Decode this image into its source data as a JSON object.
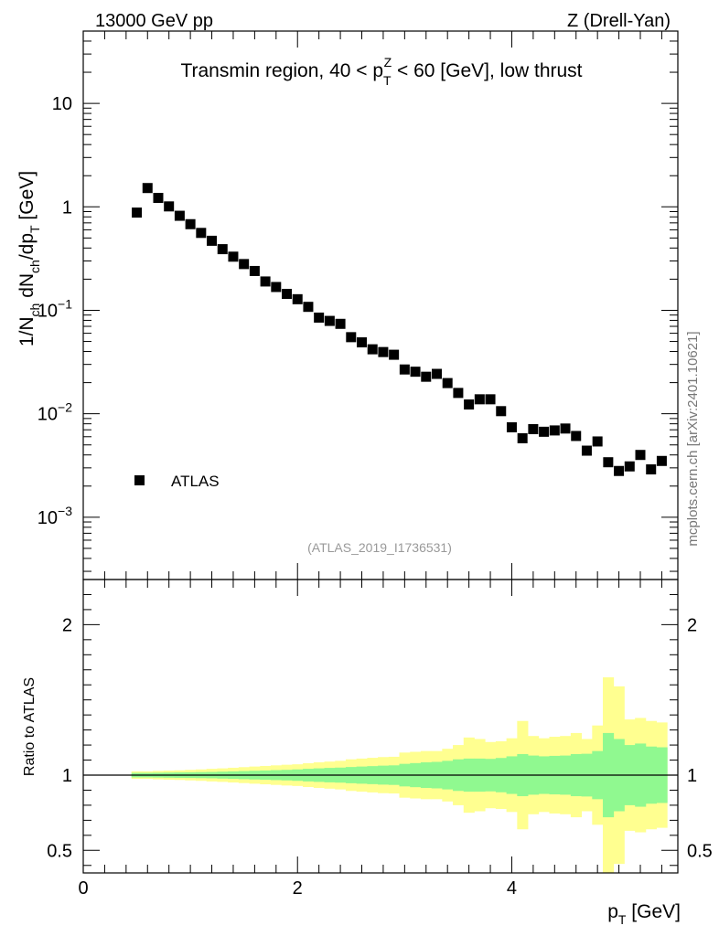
{
  "header": {
    "left_label": "13000 GeV pp",
    "right_label": "Z (Drell-Yan)"
  },
  "watermark": "mcplots.cern.ch [arXiv:2401.10621]",
  "colors": {
    "marker": "#000000",
    "band_inner": "#90f990",
    "band_outer": "#ffff90",
    "reference_line": "#000000"
  },
  "chart_data": [
    {
      "type": "scatter",
      "panel": "main",
      "title": "Transmin region, 40 < p_T^Z < 60 [GeV], low thrust",
      "title_parts": {
        "pre": "Transmin region, 40 < p",
        "sub": "T",
        "sup": "Z",
        "post": " < 60 [GeV], low thrust"
      },
      "analysis_tag": "(ATLAS_2019_I1736531)",
      "ylabel": "1/N_ch dN_ch/dp_T [GeV]",
      "ylabel_parts": [
        "1/N",
        "ch",
        " dN",
        "ch",
        "/dp",
        "T",
        " [GeV]"
      ],
      "yscale": "log",
      "ylim": [
        0.00025,
        50
      ],
      "xlim": [
        0,
        5.55
      ],
      "y_ticks": [
        {
          "value": 10,
          "base": "10",
          "exp": ""
        },
        {
          "value": 1,
          "base": "1",
          "exp": ""
        },
        {
          "value": 0.1,
          "base": "10",
          "exp": "−1"
        },
        {
          "value": 0.01,
          "base": "10",
          "exp": "−2"
        },
        {
          "value": 0.001,
          "base": "10",
          "exp": "−3"
        }
      ],
      "legend": {
        "entries": [
          "ATLAS"
        ],
        "position": "lower-left"
      },
      "series": [
        {
          "name": "ATLAS",
          "x": [
            0.5,
            0.6,
            0.7,
            0.8,
            0.9,
            1.0,
            1.1,
            1.2,
            1.3,
            1.4,
            1.5,
            1.6,
            1.7,
            1.8,
            1.9,
            2.0,
            2.1,
            2.2,
            2.3,
            2.4,
            2.5,
            2.6,
            2.7,
            2.8,
            2.9,
            3.0,
            3.1,
            3.2,
            3.3,
            3.4,
            3.5,
            3.6,
            3.7,
            3.8,
            3.9,
            4.0,
            4.1,
            4.2,
            4.3,
            4.4,
            4.5,
            4.6,
            4.7,
            4.8,
            4.9,
            5.0,
            5.1,
            5.2,
            5.3,
            5.4
          ],
          "y": [
            0.88,
            1.52,
            1.22,
            1.01,
            0.82,
            0.68,
            0.56,
            0.47,
            0.39,
            0.33,
            0.28,
            0.24,
            0.19,
            0.168,
            0.144,
            0.128,
            0.108,
            0.085,
            0.079,
            0.074,
            0.055,
            0.049,
            0.042,
            0.0395,
            0.0372,
            0.0268,
            0.0255,
            0.0228,
            0.0243,
            0.0198,
            0.0159,
            0.0123,
            0.0138,
            0.0138,
            0.0106,
            0.0074,
            0.0058,
            0.0071,
            0.0067,
            0.0069,
            0.0072,
            0.0061,
            0.0044,
            0.0054,
            0.0034,
            0.0028,
            0.0031,
            0.004,
            0.0029,
            0.0035
          ]
        }
      ]
    },
    {
      "type": "area",
      "panel": "ratio",
      "ylabel": "Ratio to ATLAS",
      "xlabel": "p_T [GeV]",
      "xlabel_parts": [
        "p",
        "T",
        " [GeV]"
      ],
      "xlim": [
        0,
        5.55
      ],
      "ylim": [
        0.35,
        2.3
      ],
      "x_ticks": [
        0,
        2,
        4
      ],
      "y_ticks": [
        0.5,
        1,
        2
      ],
      "reference": 1,
      "bin_edges": [
        0.45,
        0.55,
        0.65,
        0.75,
        0.85,
        0.95,
        1.05,
        1.15,
        1.25,
        1.35,
        1.45,
        1.55,
        1.65,
        1.75,
        1.85,
        1.95,
        2.05,
        2.15,
        2.25,
        2.35,
        2.45,
        2.55,
        2.65,
        2.75,
        2.85,
        2.95,
        3.05,
        3.15,
        3.25,
        3.35,
        3.45,
        3.55,
        3.65,
        3.75,
        3.85,
        3.95,
        4.05,
        4.15,
        4.25,
        4.35,
        4.45,
        4.55,
        4.65,
        4.75,
        4.85,
        4.95,
        5.05,
        5.15,
        5.25,
        5.35,
        5.45
      ],
      "series": [
        {
          "name": "inner band",
          "low": [
            0.985,
            0.985,
            0.984,
            0.983,
            0.982,
            0.981,
            0.98,
            0.979,
            0.977,
            0.975,
            0.973,
            0.971,
            0.969,
            0.967,
            0.965,
            0.962,
            0.958,
            0.955,
            0.952,
            0.95,
            0.946,
            0.943,
            0.94,
            0.937,
            0.935,
            0.925,
            0.92,
            0.915,
            0.912,
            0.905,
            0.895,
            0.89,
            0.89,
            0.892,
            0.886,
            0.875,
            0.86,
            0.87,
            0.875,
            0.872,
            0.87,
            0.86,
            0.858,
            0.84,
            0.72,
            0.76,
            0.8,
            0.79,
            0.81,
            0.815
          ],
          "high": [
            1.015,
            1.015,
            1.016,
            1.017,
            1.018,
            1.019,
            1.02,
            1.021,
            1.023,
            1.025,
            1.027,
            1.029,
            1.031,
            1.033,
            1.035,
            1.038,
            1.042,
            1.045,
            1.048,
            1.05,
            1.054,
            1.057,
            1.06,
            1.063,
            1.065,
            1.075,
            1.08,
            1.085,
            1.088,
            1.095,
            1.105,
            1.11,
            1.11,
            1.108,
            1.114,
            1.125,
            1.14,
            1.13,
            1.125,
            1.128,
            1.13,
            1.14,
            1.142,
            1.16,
            1.28,
            1.24,
            1.2,
            1.21,
            1.19,
            1.185
          ]
        },
        {
          "name": "outer band",
          "low": [
            0.975,
            0.975,
            0.972,
            0.97,
            0.968,
            0.965,
            0.962,
            0.958,
            0.955,
            0.951,
            0.947,
            0.943,
            0.939,
            0.935,
            0.931,
            0.928,
            0.921,
            0.915,
            0.91,
            0.905,
            0.895,
            0.89,
            0.885,
            0.88,
            0.878,
            0.85,
            0.845,
            0.84,
            0.84,
            0.825,
            0.8,
            0.75,
            0.76,
            0.78,
            0.775,
            0.755,
            0.64,
            0.74,
            0.755,
            0.745,
            0.74,
            0.72,
            0.76,
            0.67,
            0.35,
            0.41,
            0.63,
            0.62,
            0.64,
            0.65
          ],
          "high": [
            1.025,
            1.025,
            1.028,
            1.03,
            1.032,
            1.035,
            1.038,
            1.042,
            1.045,
            1.049,
            1.053,
            1.057,
            1.061,
            1.065,
            1.069,
            1.072,
            1.079,
            1.085,
            1.09,
            1.095,
            1.105,
            1.11,
            1.115,
            1.12,
            1.122,
            1.15,
            1.155,
            1.16,
            1.16,
            1.175,
            1.2,
            1.25,
            1.24,
            1.22,
            1.225,
            1.245,
            1.36,
            1.26,
            1.245,
            1.255,
            1.26,
            1.28,
            1.24,
            1.33,
            1.65,
            1.59,
            1.37,
            1.38,
            1.36,
            1.35
          ]
        }
      ]
    }
  ]
}
